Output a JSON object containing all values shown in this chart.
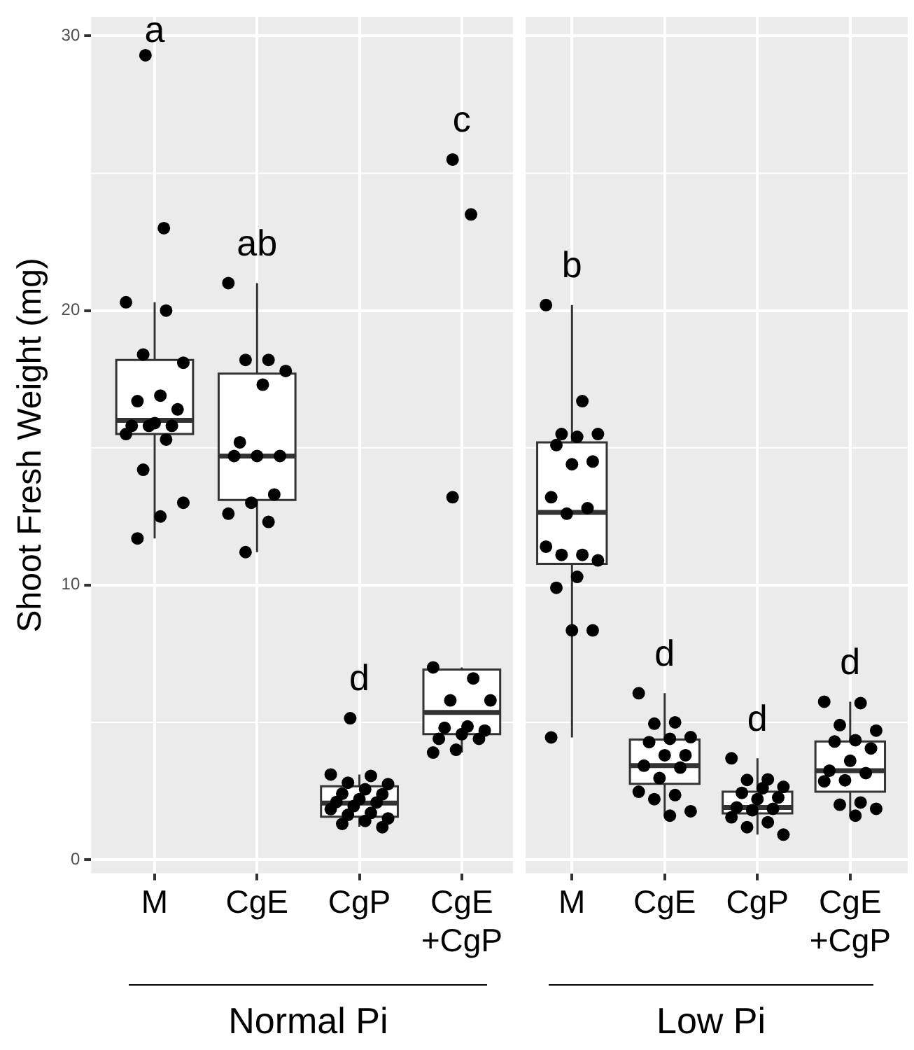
{
  "chart_data": [
    {
      "type": "box",
      "ylabel": "Shoot Fresh Weight (mg)",
      "xlabel": "Normal Pi",
      "categories": [
        "M",
        "CgE",
        "CgP",
        "CgE\n+CgP"
      ],
      "ylim": [
        -0.5,
        30.7
      ],
      "yticks": [
        0,
        10,
        20,
        30
      ],
      "grid": true,
      "marker": "circle",
      "boxes": [
        {
          "low": 11.7,
          "q1": 15.5,
          "median": 16.0,
          "q3": 18.2,
          "high": 20.3,
          "outliers": [
            29.3,
            23.0
          ]
        },
        {
          "low": 11.2,
          "q1": 13.1,
          "median": 14.7,
          "q3": 17.7,
          "high": 21.0
        },
        {
          "low": 1.2,
          "q1": 1.56,
          "median": 2.06,
          "q3": 2.67,
          "high": 3.1,
          "outliers": [
            5.15
          ]
        },
        {
          "low": 3.9,
          "q1": 4.57,
          "median": 5.36,
          "q3": 6.92,
          "high": 7.0,
          "outliers": [
            25.5,
            23.5,
            13.2
          ]
        }
      ],
      "series": [
        {
          "type": "scatter",
          "color": "#000000",
          "x": [
            "M",
            "M",
            "M",
            "M",
            "M",
            "M",
            "M",
            "M",
            "M",
            "M",
            "M",
            "M",
            "M",
            "M",
            "M",
            "M",
            "M"
          ],
          "values": [
            20.3,
            20.0,
            18.4,
            18.1,
            16.9,
            16.7,
            16.4,
            15.9,
            15.8,
            15.8,
            15.8,
            15.5,
            15.3,
            14.2,
            13.0,
            12.5,
            11.7
          ]
        },
        {
          "type": "scatter",
          "color": "#000000",
          "x": [
            "CgE",
            "CgE",
            "CgE",
            "CgE",
            "CgE",
            "CgE",
            "CgE",
            "CgE",
            "CgE",
            "CgE",
            "CgE",
            "CgE",
            "CgE",
            "CgE"
          ],
          "values": [
            21.0,
            18.2,
            18.2,
            17.8,
            17.3,
            15.2,
            14.7,
            14.7,
            14.7,
            13.3,
            13.0,
            12.6,
            12.3,
            11.2
          ]
        },
        {
          "type": "scatter",
          "color": "#000000",
          "x": [
            "CgP",
            "CgP",
            "CgP",
            "CgP",
            "CgP",
            "CgP",
            "CgP",
            "CgP",
            "CgP",
            "CgP",
            "CgP",
            "CgP",
            "CgP",
            "CgP",
            "CgP",
            "CgP",
            "CgP",
            "CgP"
          ],
          "values": [
            3.1,
            3.05,
            2.8,
            2.75,
            2.56,
            2.4,
            2.38,
            2.2,
            2.1,
            2.08,
            1.95,
            1.84,
            1.7,
            1.63,
            1.5,
            1.41,
            1.3,
            1.18
          ]
        },
        {
          "type": "scatter",
          "color": "#000000",
          "x": [
            "CgE\n+CgP",
            "CgE\n+CgP",
            "CgE\n+CgP",
            "CgE\n+CgP",
            "CgE\n+CgP",
            "CgE\n+CgP",
            "CgE\n+CgP",
            "CgE\n+CgP",
            "CgE\n+CgP",
            "CgE\n+CgP",
            "CgE\n+CgP",
            "CgE\n+CgP"
          ],
          "values": [
            7.0,
            6.6,
            5.8,
            5.8,
            4.85,
            4.8,
            4.7,
            4.57,
            4.4,
            4.4,
            4.0,
            3.9
          ]
        }
      ],
      "annotations": [
        "a",
        "ab",
        "d",
        "c"
      ]
    },
    {
      "type": "box",
      "xlabel": "Low Pi",
      "tick_labels": "x",
      "categories": [
        "M",
        "CgE",
        "CgP",
        "CgE\n+CgP"
      ],
      "ylim": [
        -0.5,
        30.7
      ],
      "yticks": [
        0,
        10,
        20,
        30
      ],
      "grid": true,
      "marker": "circle",
      "boxes": [
        {
          "low": 4.45,
          "q1": 10.77,
          "median": 12.65,
          "q3": 15.2,
          "high": 20.2
        },
        {
          "low": 1.6,
          "q1": 2.76,
          "median": 3.42,
          "q3": 4.37,
          "high": 6.06
        },
        {
          "low": 0.91,
          "q1": 1.68,
          "median": 1.9,
          "q3": 2.47,
          "high": 3.69
        },
        {
          "low": 1.6,
          "q1": 2.47,
          "median": 3.24,
          "q3": 4.3,
          "high": 5.75
        }
      ],
      "series": [
        {
          "type": "scatter",
          "color": "#000000",
          "x": [
            "M",
            "M",
            "M",
            "M",
            "M",
            "M",
            "M",
            "M",
            "M",
            "M",
            "M",
            "M",
            "M",
            "M",
            "M",
            "M",
            "M",
            "M",
            "M",
            "M"
          ],
          "values": [
            20.2,
            16.7,
            15.5,
            15.5,
            15.4,
            15.1,
            14.5,
            14.4,
            13.2,
            12.8,
            12.6,
            11.4,
            11.1,
            11.1,
            10.9,
            10.3,
            9.9,
            8.35,
            8.35,
            4.45
          ]
        },
        {
          "type": "scatter",
          "color": "#000000",
          "x": [
            "CgE",
            "CgE",
            "CgE",
            "CgE",
            "CgE",
            "CgE",
            "CgE",
            "CgE",
            "CgE",
            "CgE",
            "CgE",
            "CgE",
            "CgE",
            "CgE",
            "CgE",
            "CgE"
          ],
          "values": [
            6.06,
            5.0,
            4.95,
            4.46,
            4.4,
            4.28,
            3.8,
            3.8,
            3.42,
            3.35,
            2.97,
            2.47,
            2.35,
            2.2,
            1.76,
            1.6
          ]
        },
        {
          "type": "scatter",
          "color": "#000000",
          "x": [
            "CgP",
            "CgP",
            "CgP",
            "CgP",
            "CgP",
            "CgP",
            "CgP",
            "CgP",
            "CgP",
            "CgP",
            "CgP",
            "CgP",
            "CgP",
            "CgP",
            "CgP"
          ],
          "values": [
            3.69,
            2.92,
            2.9,
            2.65,
            2.6,
            2.43,
            2.26,
            2.2,
            1.9,
            1.85,
            1.8,
            1.54,
            1.36,
            1.18,
            0.91
          ]
        },
        {
          "type": "scatter",
          "color": "#000000",
          "x": [
            "CgE\n+CgP",
            "CgE\n+CgP",
            "CgE\n+CgP",
            "CgE\n+CgP",
            "CgE\n+CgP",
            "CgE\n+CgP",
            "CgE\n+CgP",
            "CgE\n+CgP",
            "CgE\n+CgP",
            "CgE\n+CgP",
            "CgE\n+CgP",
            "CgE\n+CgP",
            "CgE\n+CgP",
            "CgE\n+CgP",
            "CgE\n+CgP",
            "CgE\n+CgP"
          ],
          "values": [
            5.75,
            5.7,
            4.9,
            4.7,
            4.35,
            4.3,
            4.05,
            3.6,
            3.24,
            3.15,
            2.89,
            2.85,
            2.08,
            2.0,
            1.85,
            1.6
          ]
        }
      ],
      "annotations": [
        "b",
        "d",
        "d",
        "d"
      ]
    }
  ]
}
